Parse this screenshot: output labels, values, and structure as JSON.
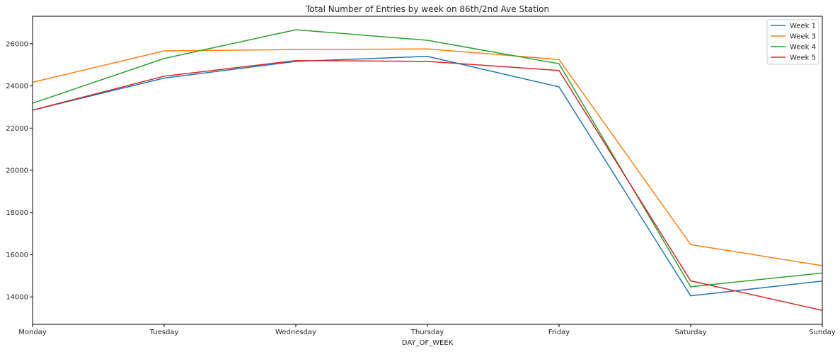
{
  "chart_data": {
    "type": "line",
    "title": "Total Number of Entries by week on 86th/2nd Ave Station",
    "xlabel": "DAY_OF_WEEK",
    "ylabel": "",
    "categories": [
      "Monday",
      "Tuesday",
      "Wednesday",
      "Thursday",
      "Friday",
      "Saturday",
      "Sunday"
    ],
    "ylim": [
      12700,
      27300
    ],
    "yticks": [
      14000,
      16000,
      18000,
      20000,
      22000,
      24000,
      26000
    ],
    "grid": false,
    "legend_position": "top-right",
    "series": [
      {
        "name": "Week 1",
        "color": "#1f77b4",
        "values": [
          22850,
          24370,
          25160,
          25400,
          23950,
          14050,
          14750
        ]
      },
      {
        "name": "Week 3",
        "color": "#ff7f0e",
        "values": [
          24170,
          25660,
          25720,
          25750,
          25250,
          16480,
          15480
        ]
      },
      {
        "name": "Week 4",
        "color": "#2ca02c",
        "values": [
          23180,
          25300,
          26660,
          26160,
          25050,
          14480,
          15130
        ]
      },
      {
        "name": "Week 5",
        "color": "#d62728",
        "values": [
          22850,
          24460,
          25200,
          25160,
          24730,
          14760,
          13360
        ]
      }
    ]
  }
}
